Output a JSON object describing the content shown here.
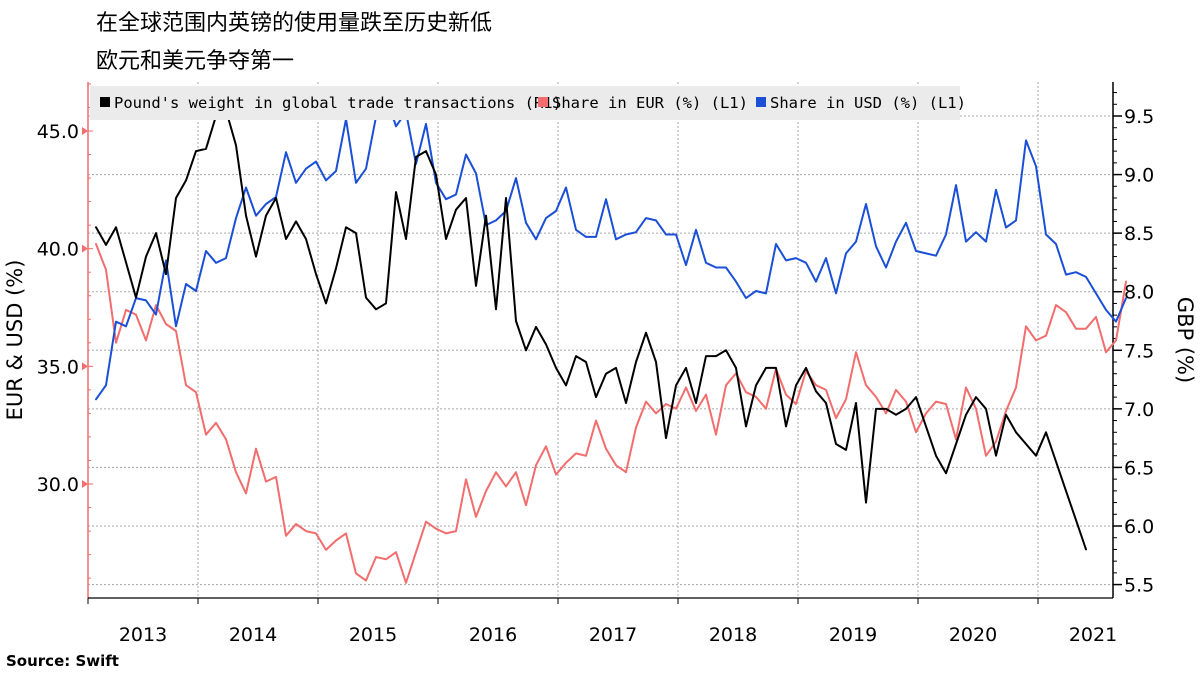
{
  "header": {
    "title_line1": "在全球范围内英镑的使用量跌至历史新低",
    "title_line2": "欧元和美元争夺第一"
  },
  "footer": {
    "source": "Source: Swift"
  },
  "chart_data": {
    "type": "line",
    "title": "在全球范围内英镑的使用量跌至历史新低 欧元和美元争夺第一",
    "x_start": "2012-07",
    "x_step": "month",
    "x_tick_labels": [
      "2013",
      "2014",
      "2015",
      "2016",
      "2017",
      "2018",
      "2019",
      "2020",
      "2021"
    ],
    "left_axis": {
      "label": "EUR & USD (%)",
      "ylim": [
        25.5,
        47.5
      ],
      "ticks": [
        "30.0",
        "35.0",
        "40.0",
        "45.0"
      ]
    },
    "right_axis": {
      "label": "GBP (%)",
      "ylim": [
        5.5,
        9.8
      ],
      "ticks": [
        "5.5",
        "6.0",
        "6.5",
        "7.0",
        "7.5",
        "8.0",
        "8.5",
        "9.0",
        "9.5"
      ]
    },
    "grid": true,
    "legend_position": "top",
    "legend": [
      {
        "label": "Pound's weight in global trade transactions (R1)",
        "color": "#000000"
      },
      {
        "label": "Share in EUR (%) (L1)",
        "color": "#f26d6d"
      },
      {
        "label": "Share in USD (%) (L1)",
        "color": "#1a4fd6"
      }
    ],
    "series": [
      {
        "name": "Share in EUR (%) (L1)",
        "axis": "left",
        "color": "#f26d6d",
        "values": [
          40.2,
          39.1,
          36.0,
          37.4,
          37.2,
          36.1,
          37.6,
          36.8,
          36.5,
          34.2,
          33.9,
          32.1,
          32.6,
          31.9,
          30.5,
          29.6,
          31.5,
          30.1,
          30.3,
          27.8,
          28.3,
          28.0,
          27.9,
          27.2,
          27.6,
          27.9,
          26.2,
          25.9,
          26.9,
          26.8,
          27.1,
          25.8,
          27.1,
          28.4,
          28.1,
          27.9,
          28.0,
          30.2,
          28.6,
          29.7,
          30.5,
          29.9,
          30.5,
          29.1,
          30.8,
          31.6,
          30.4,
          30.9,
          31.3,
          31.2,
          32.7,
          31.5,
          30.8,
          30.5,
          32.4,
          33.5,
          33.0,
          33.4,
          33.2,
          34.1,
          33.1,
          33.8,
          32.1,
          34.2,
          34.7,
          33.9,
          33.7,
          33.2,
          34.9,
          33.8,
          33.4,
          34.8,
          34.2,
          34.0,
          32.8,
          33.6,
          35.6,
          34.2,
          33.7,
          33.0,
          34.0,
          33.5,
          32.2,
          33.0,
          33.5,
          33.4,
          31.9,
          34.1,
          33.2,
          31.2,
          31.8,
          33.1,
          34.1,
          36.7,
          36.1,
          36.3,
          37.6,
          37.3,
          36.6,
          36.6,
          37.1,
          35.6,
          36.1,
          38.6
        ]
      },
      {
        "name": "Share in USD (%) (L1)",
        "axis": "left",
        "color": "#1a4fd6",
        "values": [
          33.6,
          34.2,
          36.9,
          36.7,
          37.9,
          37.8,
          37.2,
          39.5,
          36.7,
          38.5,
          38.2,
          39.9,
          39.4,
          39.6,
          41.3,
          42.6,
          41.4,
          41.9,
          42.2,
          44.1,
          42.8,
          43.4,
          43.7,
          42.9,
          43.3,
          45.5,
          42.8,
          43.4,
          45.6,
          46.5,
          45.2,
          45.8,
          43.6,
          45.3,
          42.8,
          42.1,
          42.3,
          44.0,
          43.2,
          41.0,
          41.2,
          41.6,
          43.0,
          41.1,
          40.4,
          41.3,
          41.6,
          42.6,
          40.8,
          40.5,
          40.5,
          42.1,
          40.4,
          40.6,
          40.7,
          41.3,
          41.2,
          40.6,
          40.6,
          39.3,
          40.8,
          39.4,
          39.2,
          39.2,
          38.6,
          37.9,
          38.2,
          38.1,
          40.2,
          39.5,
          39.6,
          39.4,
          38.6,
          39.6,
          38.1,
          39.8,
          40.3,
          41.9,
          40.1,
          39.2,
          40.3,
          41.1,
          39.9,
          39.8,
          39.7,
          40.6,
          42.7,
          40.3,
          40.7,
          40.3,
          42.5,
          40.9,
          41.2,
          44.6,
          43.5,
          40.6,
          40.2,
          38.9,
          39.0,
          38.8,
          38.1,
          37.4,
          36.9,
          37.9
        ]
      },
      {
        "name": "Pound's weight in global trade transactions (R1)",
        "axis": "right",
        "color": "#000000",
        "values": [
          8.55,
          8.4,
          8.55,
          8.25,
          7.95,
          8.3,
          8.5,
          8.15,
          8.8,
          8.95,
          9.2,
          9.22,
          9.5,
          9.55,
          9.25,
          8.65,
          8.3,
          8.65,
          8.8,
          8.45,
          8.6,
          8.45,
          8.15,
          7.9,
          8.2,
          8.55,
          8.5,
          7.95,
          7.85,
          7.9,
          8.85,
          8.45,
          9.15,
          9.2,
          9.0,
          8.45,
          8.7,
          8.8,
          8.05,
          8.65,
          7.85,
          8.8,
          7.75,
          7.5,
          7.7,
          7.55,
          7.35,
          7.2,
          7.45,
          7.4,
          7.1,
          7.3,
          7.35,
          7.05,
          7.4,
          7.65,
          7.4,
          6.75,
          7.2,
          7.35,
          7.05,
          7.45,
          7.45,
          7.5,
          7.35,
          6.85,
          7.2,
          7.35,
          7.35,
          6.85,
          7.2,
          7.35,
          7.15,
          7.05,
          6.7,
          6.65,
          7.05,
          6.2,
          7.0,
          7.0,
          6.95,
          7.0,
          7.1,
          6.85,
          6.6,
          6.45,
          6.7,
          6.95,
          7.1,
          7.0,
          6.6,
          6.95,
          6.8,
          6.7,
          6.6,
          6.8,
          6.55,
          6.3,
          6.05,
          5.8
        ]
      }
    ]
  }
}
